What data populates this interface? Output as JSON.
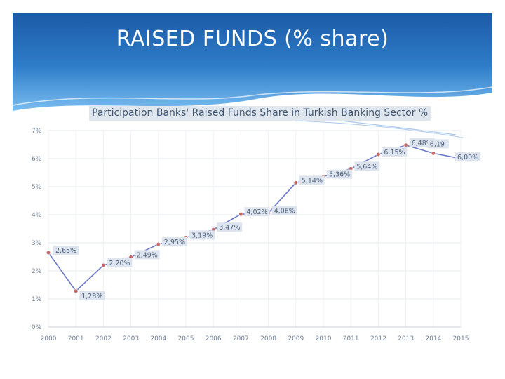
{
  "slide": {
    "title": "RAISED FUNDS (% share)"
  },
  "colors": {
    "header_dark": "#1d5ea9",
    "header_light": "#5aa8e6",
    "line": "#6a78c8",
    "marker": "#c76868",
    "grid": "#e4e8ee"
  },
  "chart_data": {
    "type": "line",
    "title": "Participation Banks' Raised Funds Share in Turkish Banking Sector %",
    "xlabel": "",
    "ylabel": "",
    "categories": [
      "2000",
      "2001",
      "2002",
      "2003",
      "2004",
      "2005",
      "2006",
      "2007",
      "2008",
      "2009",
      "2010",
      "2011",
      "2012",
      "2013",
      "2014",
      "2015"
    ],
    "values": [
      2.65,
      1.28,
      2.2,
      2.49,
      2.95,
      3.19,
      3.47,
      4.02,
      4.06,
      5.14,
      5.36,
      5.64,
      6.15,
      6.48,
      6.19,
      6.0
    ],
    "data_labels": [
      "2,65%",
      "1,28%",
      "2,20%",
      "2,49%",
      "2,95%",
      "3,19%",
      "3,47%",
      "4,02%",
      "4,06%",
      "5,14%",
      "5,36%",
      "5,64%",
      "6,15%",
      "6,48%",
      "6,19",
      "6,00%"
    ],
    "ylim": [
      0,
      7
    ],
    "yticks": [
      "0%",
      "1%",
      "2%",
      "3%",
      "4%",
      "5%",
      "6%",
      "7%"
    ],
    "grid": true,
    "legend": "none"
  }
}
